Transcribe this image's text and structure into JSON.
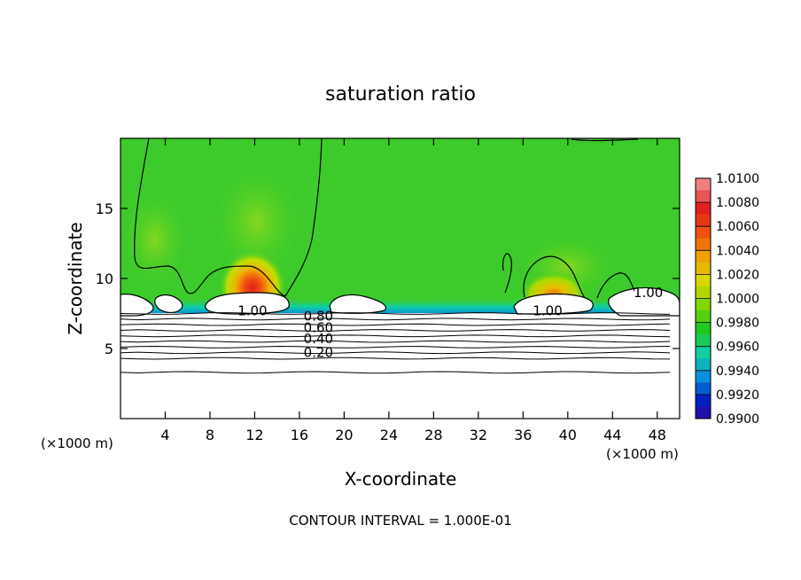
{
  "chart_data": {
    "type": "heatmap",
    "title": "saturation ratio",
    "xlabel": "X-coordinate",
    "ylabel": "Z-coordinate",
    "x_unit_left": "(×1000 m)",
    "x_unit_right": "(×1000 m)",
    "xlim": [
      0,
      50
    ],
    "ylim": [
      0,
      20
    ],
    "x_ticks": [
      4,
      8,
      12,
      16,
      20,
      24,
      28,
      32,
      36,
      40,
      44,
      48
    ],
    "y_ticks": [
      5,
      10,
      15
    ],
    "colorbar": {
      "levels": [
        "1.0100",
        "1.0080",
        "1.0060",
        "1.0040",
        "1.0020",
        "1.0000",
        "0.9980",
        "0.9960",
        "0.9940",
        "0.9920",
        "0.9900"
      ],
      "colors": [
        "#f08080",
        "#e02020",
        "#f05010",
        "#f0a000",
        "#d8d800",
        "#80d800",
        "#20c820",
        "#10d0a0",
        "#0890e0",
        "#0020c0",
        "#400090"
      ]
    },
    "background_color": "#3ccb2a",
    "contour_labels": [
      {
        "text": "1.00",
        "x": 11.8,
        "y": 7.7
      },
      {
        "text": "1.00",
        "x": 38.2,
        "y": 7.7
      },
      {
        "text": "1.00",
        "x": 47.2,
        "y": 9.0
      },
      {
        "text": "0.80",
        "x": 17.7,
        "y": 7.3
      },
      {
        "text": "0.60",
        "x": 17.7,
        "y": 6.5
      },
      {
        "text": "0.40",
        "x": 17.7,
        "y": 5.7
      },
      {
        "text": "0.20",
        "x": 17.7,
        "y": 4.7
      }
    ],
    "horizontal_contours_z": [
      7.5,
      7.1,
      6.7,
      6.3,
      5.9,
      5.5,
      5.1,
      4.7,
      4.3,
      3.3
    ],
    "footer": "CONTOUR INTERVAL = 1.000E-01"
  }
}
